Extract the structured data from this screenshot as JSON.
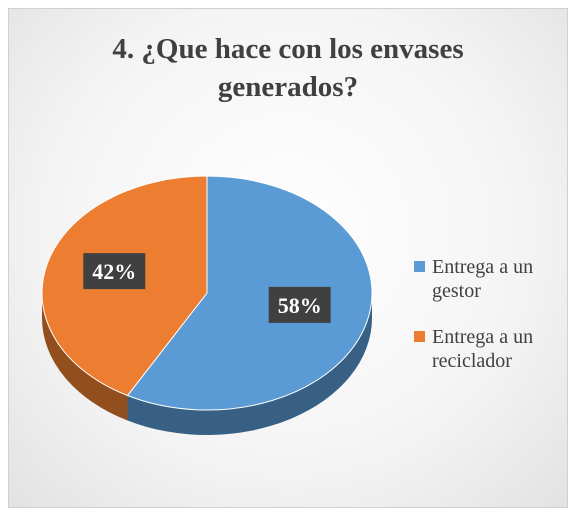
{
  "chart_data": {
    "type": "pie",
    "title": "4. ¿Que hace con los envases generados?",
    "categories": [
      "Entrega a un gestor",
      "Entrega a un reciclador"
    ],
    "values": [
      58,
      42
    ],
    "value_labels": [
      "58%",
      "42%"
    ],
    "colors": [
      "#5b9bd5",
      "#ed7d31"
    ],
    "legend": "right"
  }
}
